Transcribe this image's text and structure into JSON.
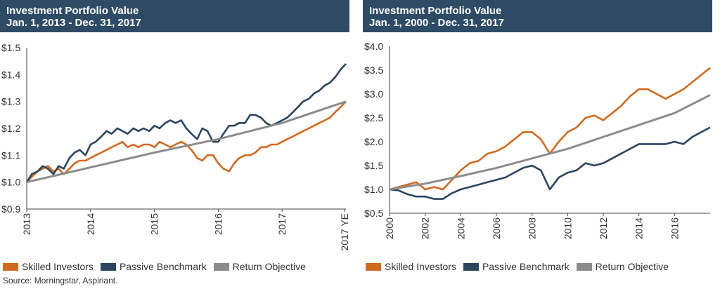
{
  "colors": {
    "title_bg": "#2E4B66",
    "skilled": "#D2691E",
    "passive": "#2C4660",
    "objective": "#8C8C8C",
    "axis": "#444444"
  },
  "source": "Source: Morningstar, Aspiriant.",
  "chart_data": [
    {
      "type": "line",
      "title": "Investment Portfolio Value",
      "subtitle": "Jan. 1, 2013 - Dec. 31, 2017",
      "xlabel": "",
      "ylabel": "",
      "ylim": [
        0.9,
        1.5
      ],
      "y_ticks": [
        "$1.5",
        "$1.4",
        "$1.3",
        "$1.2",
        "$1.1",
        "$1.0",
        "$0.9"
      ],
      "x_ticks": [
        "2013",
        "2014",
        "2015",
        "2016",
        "2017",
        "2017 YE"
      ],
      "x_tick_positions": [
        2013,
        2014,
        2015,
        2016,
        2017,
        2017.98
      ],
      "xlim": [
        2013,
        2018
      ],
      "legend": [
        "Skilled Investors",
        "Passive Benchmark",
        "Return Objective"
      ],
      "legend_position": "bottom",
      "series": [
        {
          "name": "Skilled Investors",
          "x": [
            2013,
            2013.08,
            2013.17,
            2013.25,
            2013.33,
            2013.42,
            2013.5,
            2013.58,
            2013.67,
            2013.75,
            2013.83,
            2013.92,
            2014,
            2014.08,
            2014.17,
            2014.25,
            2014.33,
            2014.42,
            2014.5,
            2014.58,
            2014.67,
            2014.75,
            2014.83,
            2014.92,
            2015,
            2015.08,
            2015.17,
            2015.25,
            2015.33,
            2015.42,
            2015.5,
            2015.58,
            2015.67,
            2015.75,
            2015.83,
            2015.92,
            2016,
            2016.08,
            2016.17,
            2016.25,
            2016.33,
            2016.42,
            2016.5,
            2016.58,
            2016.67,
            2016.75,
            2016.83,
            2016.92,
            2017,
            2017.08,
            2017.17,
            2017.25,
            2017.33,
            2017.42,
            2017.5,
            2017.58,
            2017.67,
            2017.75,
            2017.83,
            2017.92,
            2018
          ],
          "values": [
            1.0,
            1.02,
            1.04,
            1.05,
            1.06,
            1.04,
            1.05,
            1.03,
            1.05,
            1.07,
            1.08,
            1.08,
            1.09,
            1.1,
            1.11,
            1.12,
            1.13,
            1.14,
            1.15,
            1.13,
            1.14,
            1.13,
            1.14,
            1.14,
            1.13,
            1.15,
            1.14,
            1.13,
            1.14,
            1.15,
            1.14,
            1.12,
            1.09,
            1.08,
            1.1,
            1.1,
            1.07,
            1.05,
            1.04,
            1.07,
            1.09,
            1.1,
            1.1,
            1.11,
            1.13,
            1.13,
            1.14,
            1.14,
            1.15,
            1.16,
            1.17,
            1.18,
            1.19,
            1.2,
            1.21,
            1.22,
            1.23,
            1.24,
            1.26,
            1.28,
            1.3
          ]
        },
        {
          "name": "Passive Benchmark",
          "x": [
            2013,
            2013.08,
            2013.17,
            2013.25,
            2013.33,
            2013.42,
            2013.5,
            2013.58,
            2013.67,
            2013.75,
            2013.83,
            2013.92,
            2014,
            2014.08,
            2014.17,
            2014.25,
            2014.33,
            2014.42,
            2014.5,
            2014.58,
            2014.67,
            2014.75,
            2014.83,
            2014.92,
            2015,
            2015.08,
            2015.17,
            2015.25,
            2015.33,
            2015.42,
            2015.5,
            2015.58,
            2015.67,
            2015.75,
            2015.83,
            2015.92,
            2016,
            2016.08,
            2016.17,
            2016.25,
            2016.33,
            2016.42,
            2016.5,
            2016.58,
            2016.67,
            2016.75,
            2016.83,
            2016.92,
            2017,
            2017.08,
            2017.17,
            2017.25,
            2017.33,
            2017.42,
            2017.5,
            2017.58,
            2017.67,
            2017.75,
            2017.83,
            2017.92,
            2018
          ],
          "values": [
            1.0,
            1.03,
            1.04,
            1.06,
            1.05,
            1.03,
            1.06,
            1.05,
            1.09,
            1.11,
            1.12,
            1.1,
            1.14,
            1.15,
            1.17,
            1.19,
            1.18,
            1.2,
            1.19,
            1.18,
            1.2,
            1.19,
            1.2,
            1.19,
            1.21,
            1.2,
            1.22,
            1.23,
            1.22,
            1.23,
            1.2,
            1.18,
            1.16,
            1.2,
            1.19,
            1.15,
            1.15,
            1.18,
            1.21,
            1.21,
            1.22,
            1.22,
            1.25,
            1.25,
            1.24,
            1.22,
            1.21,
            1.22,
            1.23,
            1.24,
            1.26,
            1.28,
            1.3,
            1.31,
            1.33,
            1.34,
            1.36,
            1.37,
            1.39,
            1.42,
            1.44
          ]
        },
        {
          "name": "Return Objective",
          "x": [
            2013,
            2014,
            2015,
            2016,
            2017,
            2018
          ],
          "values": [
            1.0,
            1.055,
            1.11,
            1.16,
            1.22,
            1.3
          ]
        }
      ]
    },
    {
      "type": "line",
      "title": "Investment Portfolio Value",
      "subtitle": "Jan. 1, 2000 - Dec. 31, 2017",
      "xlabel": "",
      "ylabel": "",
      "ylim": [
        0.5,
        4.0
      ],
      "y_ticks": [
        "$4.0",
        "$3.5",
        "$3.0",
        "$2.5",
        "$2.0",
        "$1.5",
        "$1.0",
        "$0.5"
      ],
      "x_ticks": [
        "2000",
        "2002",
        "2004",
        "2006",
        "2008",
        "2010",
        "2012",
        "2014",
        "2016"
      ],
      "x_tick_positions": [
        2000,
        2002,
        2004,
        2006,
        2008,
        2010,
        2012,
        2014,
        2016
      ],
      "xlim": [
        2000,
        2018
      ],
      "legend": [
        "Skilled Investors",
        "Passive Benchmark",
        "Return Objective"
      ],
      "legend_position": "bottom",
      "series": [
        {
          "name": "Skilled Investors",
          "x": [
            2000,
            2000.5,
            2001,
            2001.5,
            2002,
            2002.5,
            2003,
            2003.5,
            2004,
            2004.5,
            2005,
            2005.5,
            2006,
            2006.5,
            2007,
            2007.5,
            2008,
            2008.5,
            2009,
            2009.5,
            2010,
            2010.5,
            2011,
            2011.5,
            2012,
            2012.5,
            2013,
            2013.5,
            2014,
            2014.5,
            2015,
            2015.5,
            2016,
            2016.5,
            2017,
            2017.5,
            2018
          ],
          "values": [
            1.0,
            1.05,
            1.1,
            1.15,
            1.0,
            1.05,
            1.0,
            1.2,
            1.4,
            1.55,
            1.6,
            1.75,
            1.8,
            1.9,
            2.05,
            2.2,
            2.2,
            2.05,
            1.75,
            2.0,
            2.2,
            2.3,
            2.5,
            2.55,
            2.45,
            2.6,
            2.75,
            2.95,
            3.1,
            3.1,
            3.0,
            2.9,
            3.0,
            3.1,
            3.25,
            3.4,
            3.55
          ]
        },
        {
          "name": "Passive Benchmark",
          "x": [
            2000,
            2000.5,
            2001,
            2001.5,
            2002,
            2002.5,
            2003,
            2003.5,
            2004,
            2004.5,
            2005,
            2005.5,
            2006,
            2006.5,
            2007,
            2007.5,
            2008,
            2008.5,
            2009,
            2009.5,
            2010,
            2010.5,
            2011,
            2011.5,
            2012,
            2012.5,
            2013,
            2013.5,
            2014,
            2014.5,
            2015,
            2015.5,
            2016,
            2016.5,
            2017,
            2017.5,
            2018
          ],
          "values": [
            1.0,
            0.98,
            0.9,
            0.85,
            0.85,
            0.8,
            0.8,
            0.92,
            1.0,
            1.05,
            1.1,
            1.15,
            1.2,
            1.25,
            1.35,
            1.45,
            1.5,
            1.4,
            1.0,
            1.25,
            1.35,
            1.4,
            1.55,
            1.5,
            1.55,
            1.65,
            1.75,
            1.85,
            1.95,
            1.95,
            1.95,
            1.95,
            2.0,
            1.95,
            2.1,
            2.2,
            2.3
          ]
        },
        {
          "name": "Return Objective",
          "x": [
            2000,
            2002,
            2004,
            2006,
            2008,
            2010,
            2012,
            2014,
            2016,
            2018
          ],
          "values": [
            1.0,
            1.12,
            1.28,
            1.45,
            1.65,
            1.85,
            2.1,
            2.35,
            2.6,
            2.98
          ]
        }
      ]
    }
  ]
}
